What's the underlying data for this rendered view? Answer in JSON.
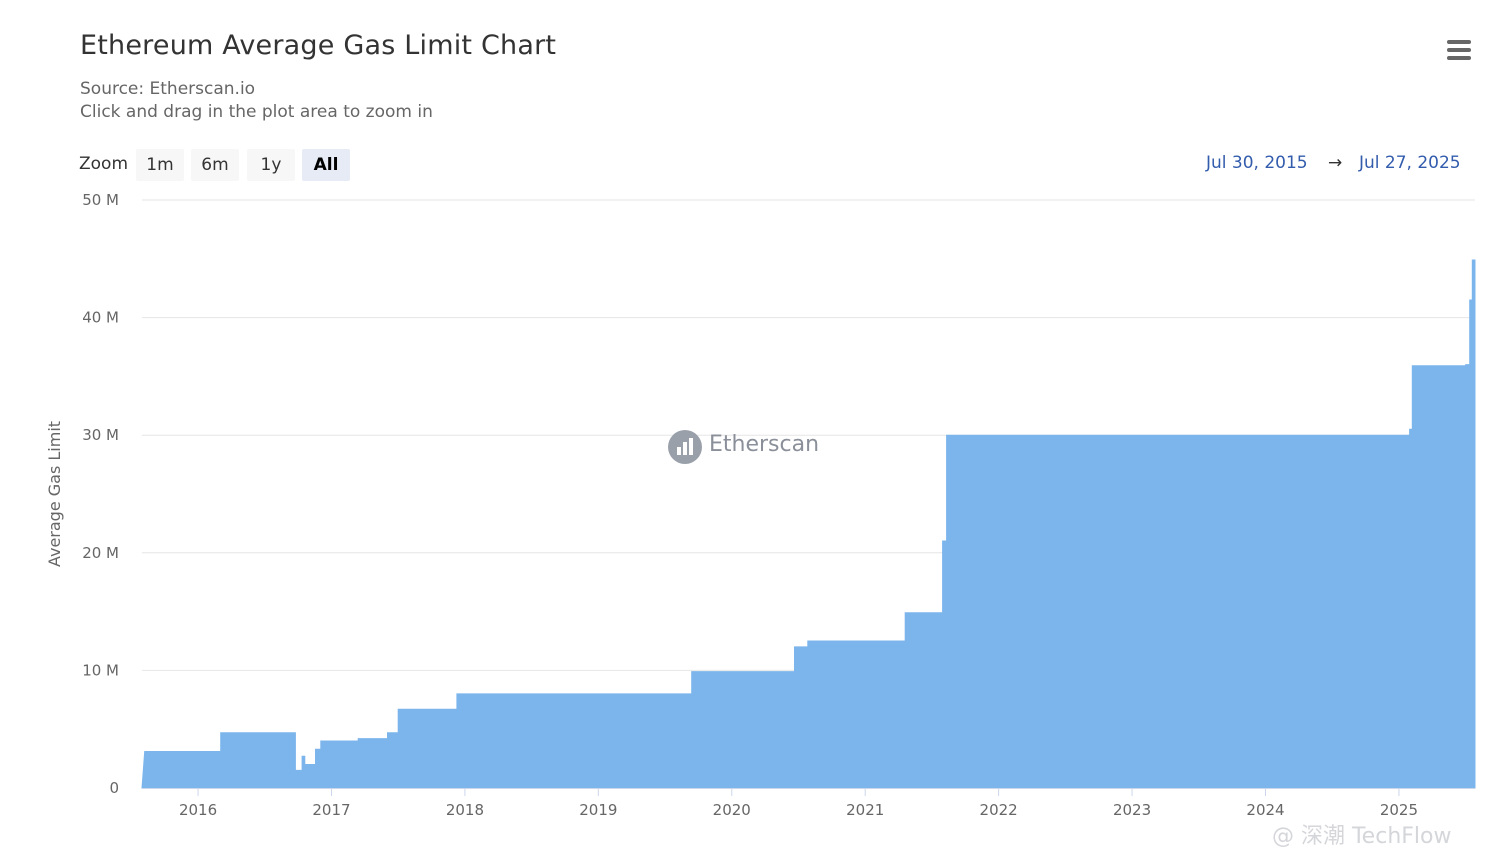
{
  "chart_data": {
    "type": "area",
    "title": "Ethereum Average Gas Limit Chart",
    "subtitle": [
      "Source: Etherscan.io",
      "Click and drag in the plot area to zoom in"
    ],
    "ylabel": "Average Gas Limit",
    "xlabel": "",
    "ylim": [
      0,
      50000000
    ],
    "yticks": [
      {
        "v": 0,
        "label": "0"
      },
      {
        "v": 10000000,
        "label": "10 M"
      },
      {
        "v": 20000000,
        "label": "20 M"
      },
      {
        "v": 30000000,
        "label": "30 M"
      },
      {
        "v": 40000000,
        "label": "40 M"
      },
      {
        "v": 50000000,
        "label": "50 M"
      }
    ],
    "xrange": [
      2015.58,
      2025.57
    ],
    "xticks": [
      {
        "v": 2016,
        "label": "2016"
      },
      {
        "v": 2017,
        "label": "2017"
      },
      {
        "v": 2018,
        "label": "2018"
      },
      {
        "v": 2019,
        "label": "2019"
      },
      {
        "v": 2020,
        "label": "2020"
      },
      {
        "v": 2021,
        "label": "2021"
      },
      {
        "v": 2022,
        "label": "2022"
      },
      {
        "v": 2023,
        "label": "2023"
      },
      {
        "v": 2024,
        "label": "2024"
      },
      {
        "v": 2025,
        "label": "2025"
      }
    ],
    "grid": true,
    "legend": "none",
    "color": "#7cb5ec",
    "points": [
      [
        2015.58,
        0
      ],
      [
        2015.6,
        3100000
      ],
      [
        2016.17,
        3100000
      ],
      [
        2016.17,
        4700000
      ],
      [
        2016.73,
        4700000
      ],
      [
        2016.73,
        1500000
      ],
      [
        2016.78,
        1500000
      ],
      [
        2016.78,
        2700000
      ],
      [
        2016.8,
        2700000
      ],
      [
        2016.8,
        2000000
      ],
      [
        2016.88,
        2000000
      ],
      [
        2016.88,
        3300000
      ],
      [
        2016.92,
        3300000
      ],
      [
        2016.92,
        4000000
      ],
      [
        2017.2,
        4000000
      ],
      [
        2017.2,
        4200000
      ],
      [
        2017.42,
        4200000
      ],
      [
        2017.42,
        4700000
      ],
      [
        2017.5,
        4700000
      ],
      [
        2017.5,
        6700000
      ],
      [
        2017.94,
        6700000
      ],
      [
        2017.94,
        8000000
      ],
      [
        2019.7,
        8000000
      ],
      [
        2019.7,
        9900000
      ],
      [
        2020.47,
        9900000
      ],
      [
        2020.47,
        12000000
      ],
      [
        2020.57,
        12000000
      ],
      [
        2020.57,
        12500000
      ],
      [
        2021.3,
        12500000
      ],
      [
        2021.3,
        14900000
      ],
      [
        2021.58,
        14900000
      ],
      [
        2021.58,
        21000000
      ],
      [
        2021.61,
        21000000
      ],
      [
        2021.61,
        30000000
      ],
      [
        2025.08,
        30000000
      ],
      [
        2025.08,
        30500000
      ],
      [
        2025.1,
        30500000
      ],
      [
        2025.1,
        35900000
      ],
      [
        2025.5,
        35900000
      ],
      [
        2025.5,
        36000000
      ],
      [
        2025.53,
        36000000
      ],
      [
        2025.53,
        41500000
      ],
      [
        2025.55,
        41500000
      ],
      [
        2025.55,
        44900000
      ],
      [
        2025.57,
        44900000
      ],
      [
        2025.57,
        0
      ]
    ]
  },
  "range_selector": {
    "zoom_label": "Zoom",
    "buttons": [
      "1m",
      "6m",
      "1y",
      "All"
    ],
    "selected": "All",
    "from": "Jul 30, 2015",
    "arrow": "→",
    "to": "Jul 27, 2025"
  },
  "watermark": "Etherscan",
  "credit": "@ 深潮 TechFlow",
  "icons": {
    "menu": "hamburger-menu-icon",
    "logo": "etherscan-logo-icon"
  }
}
